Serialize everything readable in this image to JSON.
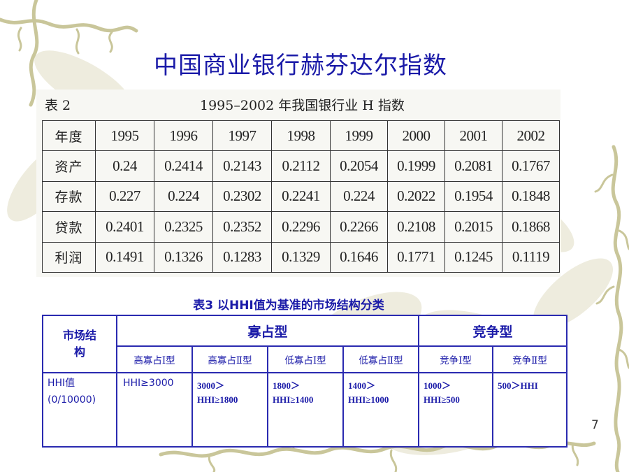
{
  "title": "中国商业银行赫芬达尔指数",
  "table2": {
    "number": "表 2",
    "caption": "1995–2002 年我国银行业 H 指数",
    "header": [
      "年度",
      "1995",
      "1996",
      "1997",
      "1998",
      "1999",
      "2000",
      "2001",
      "2002"
    ],
    "rows": [
      [
        "资产",
        "0.24",
        "0.2414",
        "0.2143",
        "0.2112",
        "0.2054",
        "0.1999",
        "0.2081",
        "0.1767"
      ],
      [
        "存款",
        "0.227",
        "0.224",
        "0.2302",
        "0.2241",
        "0.224",
        "0.2022",
        "0.1954",
        "0.1848"
      ],
      [
        "贷款",
        "0.2401",
        "0.2325",
        "0.2352",
        "0.2296",
        "0.2266",
        "0.2108",
        "0.2015",
        "0.1868"
      ],
      [
        "利润",
        "0.1491",
        "0.1326",
        "0.1283",
        "0.1329",
        "0.1646",
        "0.1771",
        "0.1245",
        "0.1119"
      ]
    ]
  },
  "table3": {
    "caption": "表3  以HHI值为基准的市场结构分类",
    "corner_line1": "市场结",
    "corner_line2": "构",
    "group1": "寡占型",
    "group2": "竞争型",
    "subtypes": [
      "高寡占Ⅰ型",
      "高寡占Ⅱ型",
      "低寡占Ⅰ型",
      "低寡占Ⅱ型",
      "竞争Ⅰ型",
      "竞争Ⅱ型"
    ],
    "row_label_line1": "HHI值",
    "row_label_line2": "(0/10000)",
    "values": [
      {
        "line1": "HHI≥3000",
        "line2": ""
      },
      {
        "line1": "3000＞",
        "line2": "HHI≥1800"
      },
      {
        "line1": "1800＞",
        "line2": "HHI≥1400"
      },
      {
        "line1": "1400＞",
        "line2": "HHI≥1000"
      },
      {
        "line1": "1000＞",
        "line2": "HHI≥500"
      },
      {
        "line1": "500＞HHI",
        "line2": ""
      }
    ]
  },
  "page_number": "7",
  "colors": {
    "title": "#1a1aa8",
    "table3_border": "#2a2ab0",
    "vine": "#c9c69a",
    "leaf": "#e6e4cf"
  }
}
